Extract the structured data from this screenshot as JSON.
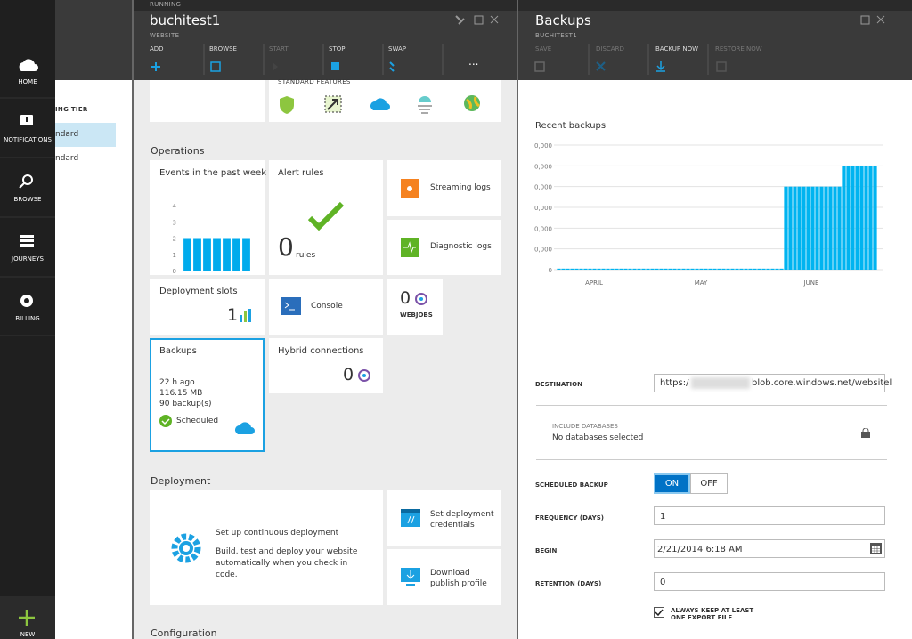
{
  "nav": {
    "items": [
      "HOME",
      "NOTIFICATIONS",
      "BROWSE",
      "JOURNEYS",
      "BILLING"
    ],
    "new": "NEW"
  },
  "blade1": {
    "heading": "ING TIER",
    "rows": [
      "ndard",
      "ndard"
    ]
  },
  "blade2": {
    "status": "RUNNING",
    "title": "buchitest1",
    "subtitle": "WEBSITE",
    "commands": [
      "ADD",
      "BROWSE",
      "START",
      "STOP",
      "SWAP"
    ],
    "more": "...",
    "standard_features": "STANDARD FEATURES",
    "operations": "Operations",
    "events": {
      "title": "Events in the past week",
      "chart": {
        "type": "bar",
        "values": [
          2,
          2,
          2,
          2,
          2,
          2,
          2
        ],
        "color": "#00abec",
        "ylim": [
          0,
          4
        ],
        "yticks": [
          0,
          1,
          2,
          3,
          4
        ]
      }
    },
    "alert_rules": {
      "title": "Alert rules",
      "count": 0,
      "unit": "rules"
    },
    "streaming_logs": "Streaming logs",
    "diagnostic_logs": "Diagnostic logs",
    "deployment_slots": {
      "title": "Deployment slots",
      "count": 1
    },
    "console": "Console",
    "webjobs": {
      "count": 0,
      "label": "WEBJOBS"
    },
    "backups": {
      "title": "Backups",
      "lines": [
        "22 h ago",
        "116.15 MB",
        "90 backup(s)"
      ],
      "status": "Scheduled"
    },
    "hybrid": {
      "title": "Hybrid connections",
      "count": 0
    },
    "deployment": "Deployment",
    "continuous": {
      "title": "Set up continuous deployment",
      "text": "Build, test and deploy your website automatically when you check in code."
    },
    "credentials": "Set deployment credentials",
    "publish": "Download publish profile",
    "configuration": "Configuration"
  },
  "blade3": {
    "title": "Backups",
    "subtitle": "BUCHITEST1",
    "commands": [
      "SAVE",
      "DISCARD",
      "BACKUP NOW",
      "RESTORE NOW"
    ],
    "chart": {
      "type": "bar",
      "title": "Recent backups",
      "color": "#00b4f0",
      "xlabels": [
        "APRIL",
        "MAY",
        "JUNE"
      ],
      "ylim": [
        0,
        6
      ],
      "yticks": [
        {
          "value": 0,
          "label": "0"
        },
        {
          "value": 1,
          "label": "0,000"
        },
        {
          "value": 2,
          "label": "0,000"
        },
        {
          "value": 3,
          "label": "0,000"
        },
        {
          "value": 4,
          "label": "0,000"
        },
        {
          "value": 5,
          "label": "0,000"
        },
        {
          "value": 6,
          "label": "0,000"
        }
      ],
      "values": [
        0.05,
        0.05,
        0.05,
        0.05,
        0.05,
        0.05,
        0.05,
        0.05,
        0.05,
        0.05,
        0.05,
        0.05,
        0.05,
        0.05,
        0.05,
        0.05,
        0.05,
        0.05,
        0.05,
        0.05,
        0.05,
        0.05,
        0.05,
        0.05,
        0.05,
        0.05,
        0.05,
        0.05,
        0.05,
        0.05,
        0.05,
        0.05,
        0.05,
        0.05,
        0.05,
        0.05,
        0.05,
        0.05,
        0.05,
        0.05,
        0.05,
        0.05,
        0.05,
        0.05,
        0.05,
        0.05,
        0.05,
        0.05,
        0.05,
        0.05,
        0.05,
        4,
        4,
        4,
        4,
        4,
        4,
        4,
        4,
        4,
        4,
        4,
        4,
        4,
        5,
        5,
        5,
        5,
        5,
        5,
        5,
        5
      ]
    },
    "form": {
      "destination": {
        "label": "DESTINATION",
        "prefix": "https:/",
        "suffix": "blob.core.windows.net/websitel"
      },
      "include": {
        "label": "INCLUDE DATABASES",
        "value": "No databases selected"
      },
      "scheduled": {
        "label": "SCHEDULED BACKUP",
        "on": "ON",
        "off": "OFF"
      },
      "frequency": {
        "label": "FREQUENCY (DAYS)",
        "value": 1
      },
      "begin": {
        "label": "BEGIN",
        "value": "2/21/2014 6:18 AM"
      },
      "retention": {
        "label": "RETENTION (DAYS)",
        "value": 0
      },
      "keep": "ALWAYS KEEP AT LEAST ONE EXPORT FILE"
    }
  }
}
